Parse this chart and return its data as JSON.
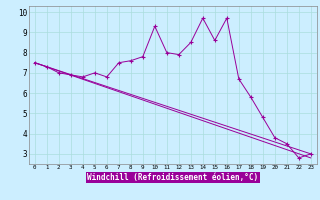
{
  "title": "",
  "xlabel": "Windchill (Refroidissement éolien,°C)",
  "background_color": "#cceeff",
  "line_color": "#990099",
  "grid_color": "#aadddd",
  "xlim": [
    -0.5,
    23.5
  ],
  "ylim": [
    2.5,
    10.3
  ],
  "xticks": [
    0,
    1,
    2,
    3,
    4,
    5,
    6,
    7,
    8,
    9,
    10,
    11,
    12,
    13,
    14,
    15,
    16,
    17,
    18,
    19,
    20,
    21,
    22,
    23
  ],
  "yticks": [
    3,
    4,
    5,
    6,
    7,
    8,
    9,
    10
  ],
  "series1_x": [
    0,
    1,
    2,
    3,
    4,
    5,
    6,
    7,
    8,
    9,
    10,
    11,
    12,
    13,
    14,
    15,
    16,
    17,
    18,
    19,
    20,
    21,
    22,
    23
  ],
  "series1_y": [
    7.5,
    7.3,
    7.0,
    6.9,
    6.8,
    7.0,
    6.8,
    7.5,
    7.6,
    7.8,
    9.3,
    8.0,
    7.9,
    8.5,
    9.7,
    8.6,
    9.7,
    6.7,
    5.8,
    4.8,
    3.8,
    3.5,
    2.8,
    3.0
  ],
  "series2_x": [
    0,
    23
  ],
  "series2_y": [
    7.5,
    3.0
  ],
  "series3_x": [
    0,
    23
  ],
  "series3_y": [
    7.5,
    2.8
  ]
}
